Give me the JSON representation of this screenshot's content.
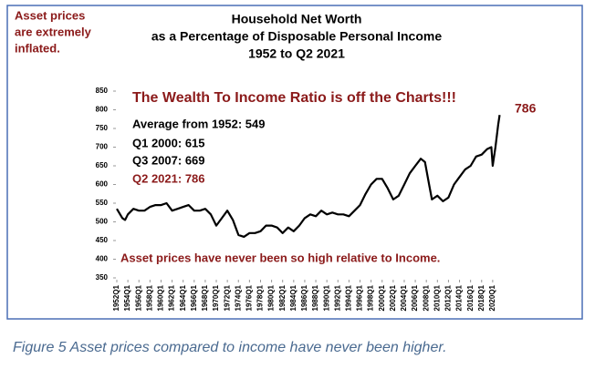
{
  "note": [
    "Asset prices",
    "are extremely",
    "inflated."
  ],
  "caption": "Figure 5 Asset prices compared to income have never been higher.",
  "chart_data": {
    "type": "line",
    "title": [
      "Household Net Worth",
      "as a Percentage of Disposable Personal Income",
      "1952 to Q2 2021"
    ],
    "headline": "The Wealth To Income Ratio is off the Charts!!!",
    "stats": [
      "Average from 1952: 549",
      "Q1 2000:  615",
      "Q3 2007:  669"
    ],
    "latest": "Q2 2021:  786",
    "bottom_note": "Asset prices have never been so high relative to Income.",
    "end_label": "786",
    "x": [
      1952,
      1953,
      1953.5,
      1954,
      1955,
      1956,
      1957,
      1958,
      1959,
      1960,
      1961,
      1962,
      1963,
      1964,
      1965,
      1966,
      1967,
      1968,
      1969,
      1970,
      1971,
      1972,
      1973,
      1974,
      1975,
      1976,
      1977,
      1978,
      1979,
      1980,
      1981,
      1982,
      1983,
      1984,
      1985,
      1986,
      1987,
      1988,
      1989,
      1990,
      1991,
      1992,
      1993,
      1994,
      1995,
      1996,
      1997,
      1998,
      1999,
      2000,
      2001,
      2002,
      2003,
      2004,
      2005,
      2006,
      2007,
      2007.75,
      2008.5,
      2009,
      2010,
      2011,
      2012,
      2013,
      2014,
      2015,
      2016,
      2017,
      2018,
      2019,
      2019.75,
      2020,
      2020.5,
      2021,
      2021.25
    ],
    "series": [
      {
        "name": "Net worth / DPI",
        "color": "#000000",
        "values": [
          535,
          510,
          505,
          520,
          535,
          530,
          530,
          540,
          545,
          545,
          550,
          530,
          535,
          540,
          545,
          530,
          530,
          535,
          520,
          490,
          510,
          530,
          505,
          465,
          460,
          470,
          470,
          475,
          490,
          490,
          485,
          470,
          485,
          475,
          490,
          510,
          520,
          515,
          530,
          520,
          525,
          520,
          520,
          515,
          530,
          545,
          575,
          600,
          615,
          615,
          590,
          560,
          570,
          600,
          630,
          650,
          669,
          660,
          600,
          560,
          570,
          555,
          565,
          600,
          620,
          640,
          650,
          675,
          680,
          695,
          700,
          650,
          700,
          760,
          786
        ]
      }
    ],
    "xlim": [
      1952,
      2022
    ],
    "xticks": [
      {
        "value": 1952,
        "label": "1952Q1"
      },
      {
        "value": 1954,
        "label": "1954Q1"
      },
      {
        "value": 1956,
        "label": "1956Q1"
      },
      {
        "value": 1958,
        "label": "1958Q1"
      },
      {
        "value": 1960,
        "label": "1960Q1"
      },
      {
        "value": 1962,
        "label": "1962Q1"
      },
      {
        "value": 1964,
        "label": "1964Q1"
      },
      {
        "value": 1966,
        "label": "1966Q1"
      },
      {
        "value": 1968,
        "label": "1968Q1"
      },
      {
        "value": 1970,
        "label": "1970Q1"
      },
      {
        "value": 1972,
        "label": "1972Q1"
      },
      {
        "value": 1974,
        "label": "1974Q1"
      },
      {
        "value": 1976,
        "label": "1976Q1"
      },
      {
        "value": 1978,
        "label": "1978Q1"
      },
      {
        "value": 1980,
        "label": "1980Q1"
      },
      {
        "value": 1982,
        "label": "1982Q1"
      },
      {
        "value": 1984,
        "label": "1984Q1"
      },
      {
        "value": 1986,
        "label": "1986Q1"
      },
      {
        "value": 1988,
        "label": "1988Q1"
      },
      {
        "value": 1990,
        "label": "1990Q1"
      },
      {
        "value": 1992,
        "label": "1992Q1"
      },
      {
        "value": 1994,
        "label": "1994Q1"
      },
      {
        "value": 1996,
        "label": "1996Q1"
      },
      {
        "value": 1998,
        "label": "1998Q1"
      },
      {
        "value": 2000,
        "label": "2000Q1"
      },
      {
        "value": 2002,
        "label": "2002Q1"
      },
      {
        "value": 2004,
        "label": "2004Q1"
      },
      {
        "value": 2006,
        "label": "2006Q1"
      },
      {
        "value": 2008,
        "label": "2008Q1"
      },
      {
        "value": 2010,
        "label": "2010Q1"
      },
      {
        "value": 2012,
        "label": "2012Q1"
      },
      {
        "value": 2014,
        "label": "2014Q1"
      },
      {
        "value": 2016,
        "label": "2016Q1"
      },
      {
        "value": 2018,
        "label": "2018Q1"
      },
      {
        "value": 2020,
        "label": "2020Q1"
      }
    ],
    "ylim": [
      350,
      850
    ],
    "yticks": [
      350,
      400,
      450,
      500,
      550,
      600,
      650,
      700,
      750,
      800,
      850
    ],
    "grid": false
  }
}
